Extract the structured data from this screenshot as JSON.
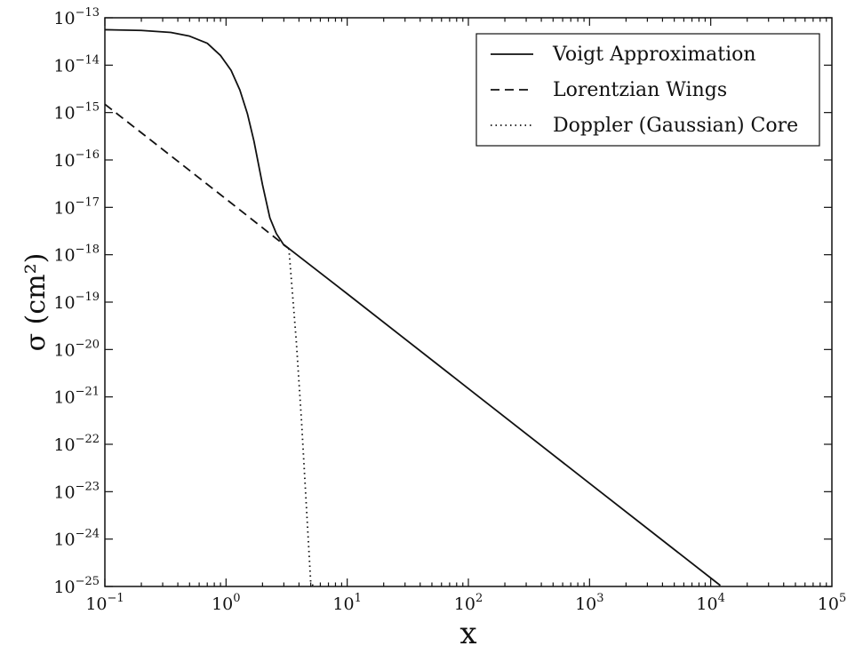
{
  "chart_data": {
    "type": "line",
    "title": "",
    "xlabel": "x",
    "ylabel": "σ (cm²)",
    "xscale": "log",
    "yscale": "log",
    "xlim": [
      0.1,
      100000
    ],
    "ylim": [
      1e-25,
      1e-13
    ],
    "grid": false,
    "legend_position": "top-right",
    "x_ticks": [
      {
        "value": 0.1,
        "base": "10",
        "exp": "−1"
      },
      {
        "value": 1,
        "base": "10",
        "exp": "0"
      },
      {
        "value": 10,
        "base": "10",
        "exp": "1"
      },
      {
        "value": 100,
        "base": "10",
        "exp": "2"
      },
      {
        "value": 1000,
        "base": "10",
        "exp": "3"
      },
      {
        "value": 10000,
        "base": "10",
        "exp": "4"
      },
      {
        "value": 100000,
        "base": "10",
        "exp": "5"
      }
    ],
    "y_ticks": [
      {
        "value": 1e-25,
        "base": "10",
        "exp": "−25"
      },
      {
        "value": 1e-24,
        "base": "10",
        "exp": "−24"
      },
      {
        "value": 1e-23,
        "base": "10",
        "exp": "−23"
      },
      {
        "value": 1e-22,
        "base": "10",
        "exp": "−22"
      },
      {
        "value": 1e-21,
        "base": "10",
        "exp": "−21"
      },
      {
        "value": 1e-20,
        "base": "10",
        "exp": "−20"
      },
      {
        "value": 1e-19,
        "base": "10",
        "exp": "−19"
      },
      {
        "value": 1e-18,
        "base": "10",
        "exp": "−18"
      },
      {
        "value": 1e-17,
        "base": "10",
        "exp": "−17"
      },
      {
        "value": 1e-16,
        "base": "10",
        "exp": "−16"
      },
      {
        "value": 1e-15,
        "base": "10",
        "exp": "−15"
      },
      {
        "value": 1e-14,
        "base": "10",
        "exp": "−14"
      },
      {
        "value": 1e-13,
        "base": "10",
        "exp": "−13"
      }
    ],
    "series": [
      {
        "name": "Voigt Approximation",
        "style": "solid",
        "color": "#111111",
        "points": [
          {
            "x": 0.1,
            "y": 5.6e-14
          },
          {
            "x": 0.2,
            "y": 5.4e-14
          },
          {
            "x": 0.35,
            "y": 4.9e-14
          },
          {
            "x": 0.5,
            "y": 4.1e-14
          },
          {
            "x": 0.7,
            "y": 2.9e-14
          },
          {
            "x": 0.9,
            "y": 1.6e-14
          },
          {
            "x": 1.1,
            "y": 7.8e-15
          },
          {
            "x": 1.3,
            "y": 3e-15
          },
          {
            "x": 1.5,
            "y": 9.5e-16
          },
          {
            "x": 1.7,
            "y": 2.5e-16
          },
          {
            "x": 2.0,
            "y": 3e-17
          },
          {
            "x": 2.3,
            "y": 6e-18
          },
          {
            "x": 2.6,
            "y": 2.8e-18
          },
          {
            "x": 3.0,
            "y": 1.6e-18
          },
          {
            "x": 3.3,
            "y": 1.35e-18
          },
          {
            "x": 10,
            "y": 1.5e-19
          },
          {
            "x": 100,
            "y": 1.5e-21
          },
          {
            "x": 1000,
            "y": 1.5e-23
          },
          {
            "x": 12000,
            "y": 1.05e-25
          }
        ]
      },
      {
        "name": "Lorentzian Wings",
        "style": "dashed",
        "color": "#111111",
        "points": [
          {
            "x": 0.1,
            "y": 1.5e-15
          },
          {
            "x": 1,
            "y": 1.5e-17
          },
          {
            "x": 3.3,
            "y": 1.35e-18
          }
        ]
      },
      {
        "name": "Doppler (Gaussian) Core",
        "style": "dotted",
        "color": "#111111",
        "points": [
          {
            "x": 3.3,
            "y": 1.35e-18
          },
          {
            "x": 3.8,
            "y": 1.5e-20
          },
          {
            "x": 4.2,
            "y": 3e-22
          },
          {
            "x": 4.6,
            "y": 5e-24
          },
          {
            "x": 5.0,
            "y": 1.2e-25
          },
          {
            "x": 5.3,
            "y": 1e-25
          }
        ]
      }
    ]
  }
}
